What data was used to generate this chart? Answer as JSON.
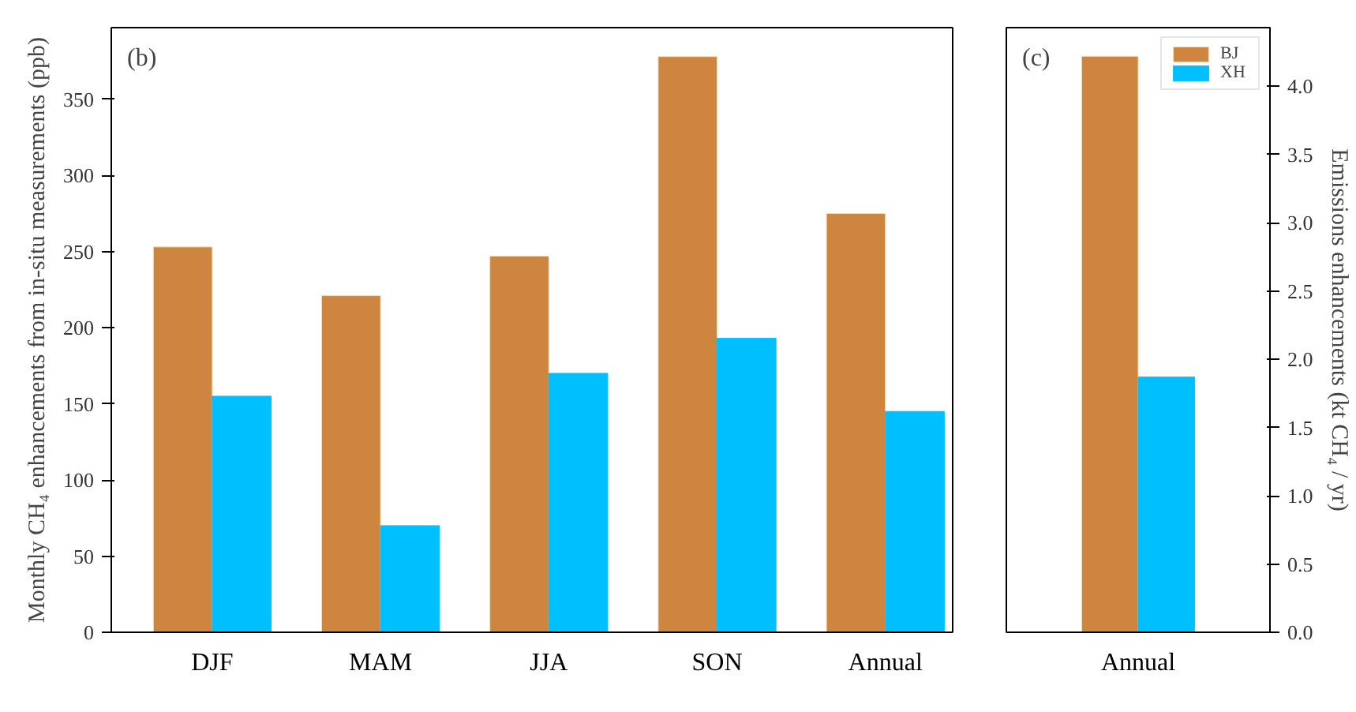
{
  "chart_data": [
    {
      "type": "bar",
      "annotations": [
        "(b)"
      ],
      "ylabel": "Monthly CH₄ enhancements from in-situ measurements (ppb)",
      "categories": [
        "DJF",
        "MAM",
        "JJA",
        "SON",
        "Annual"
      ],
      "series": [
        {
          "color": "#cd853f",
          "values": [
            253,
            221,
            247,
            378,
            275
          ]
        },
        {
          "color": "#00bfff",
          "values": [
            155,
            70,
            170,
            193,
            145
          ]
        }
      ],
      "ylim": [
        0,
        397
      ],
      "yticks": [
        0,
        50,
        100,
        150,
        200,
        250,
        300,
        350
      ]
    },
    {
      "type": "bar",
      "annotations": [
        "(c)"
      ],
      "y2label": "Emissions enhancements (kt CH₄ / yr)",
      "categories": [
        "Annual"
      ],
      "legend": "top right",
      "series": [
        {
          "name": "BJ",
          "color": "#cd853f",
          "values": [
            4.22
          ],
          "axis": "y2"
        },
        {
          "name": "XH",
          "color": "#00bfff",
          "values": [
            1.87
          ],
          "axis": "y2"
        }
      ],
      "y2lim": [
        0,
        4.43
      ],
      "y2ticks": [
        {
          "value": 0,
          "label": "0.0"
        },
        0.5,
        {
          "value": 1,
          "label": "1.0"
        },
        1.5,
        {
          "value": 2,
          "label": "2.0"
        },
        2.5,
        {
          "value": 3,
          "label": "3.0"
        },
        3.5,
        {
          "value": 4,
          "label": "4.0"
        }
      ]
    }
  ]
}
